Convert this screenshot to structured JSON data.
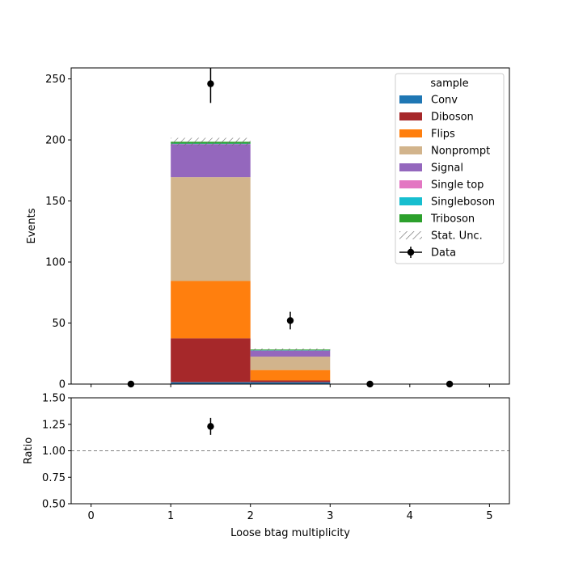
{
  "chart_data": {
    "type": "bar",
    "stacked": true,
    "xlabel": "Loose btag multiplicity",
    "ylabel": "Events",
    "ratio_ylabel": "Ratio",
    "bin_edges": [
      0,
      1,
      2,
      3,
      4,
      5
    ],
    "xlim": [
      -0.25,
      5.25
    ],
    "ylim": [
      0,
      259
    ],
    "ratio_ylim": [
      0.5,
      1.5
    ],
    "xticks": [
      "0",
      "1",
      "2",
      "3",
      "4",
      "5"
    ],
    "yticks": [
      "0",
      "50",
      "100",
      "150",
      "200",
      "250"
    ],
    "ratio_yticks": [
      "0.50",
      "0.75",
      "1.00",
      "1.25",
      "1.50"
    ],
    "ratio_reference": 1.0,
    "legend_title": "sample",
    "legend_position": "top-right",
    "series": [
      {
        "name": "Conv",
        "color": "#1f77b4",
        "values": [
          0,
          1.5,
          1.5,
          0,
          0
        ]
      },
      {
        "name": "Diboson",
        "color": "#a6282a",
        "values": [
          0,
          36,
          1.5,
          0,
          0
        ]
      },
      {
        "name": "Flips",
        "color": "#ff7f0e",
        "values": [
          0,
          47,
          8.5,
          0,
          0
        ]
      },
      {
        "name": "Nonprompt",
        "color": "#d2b48c",
        "values": [
          0,
          85,
          11,
          0,
          0
        ]
      },
      {
        "name": "Signal",
        "color": "#9467bd",
        "values": [
          0,
          27,
          5,
          0,
          0
        ]
      },
      {
        "name": "Single top",
        "color": "#e377c2",
        "values": [
          0,
          0.3,
          0.1,
          0,
          0
        ]
      },
      {
        "name": "Singleboson",
        "color": "#17becf",
        "values": [
          0,
          0.2,
          0.1,
          0,
          0
        ]
      },
      {
        "name": "Triboson",
        "color": "#2ca02c",
        "values": [
          0,
          1.5,
          0.6,
          0,
          0
        ]
      }
    ],
    "stat_unc": {
      "label": "Stat. Unc.",
      "values": [
        0,
        3.2,
        0.8,
        0,
        0
      ]
    },
    "data": {
      "label": "Data",
      "x": [
        0.5,
        1.5,
        2.5,
        3.5,
        4.5
      ],
      "y": [
        0,
        246,
        52,
        0,
        0
      ],
      "yerr": [
        0,
        15.7,
        7.2,
        0,
        0
      ]
    },
    "ratio": {
      "x": [
        1.5
      ],
      "y": [
        1.23
      ],
      "yerr": [
        0.08
      ]
    }
  }
}
